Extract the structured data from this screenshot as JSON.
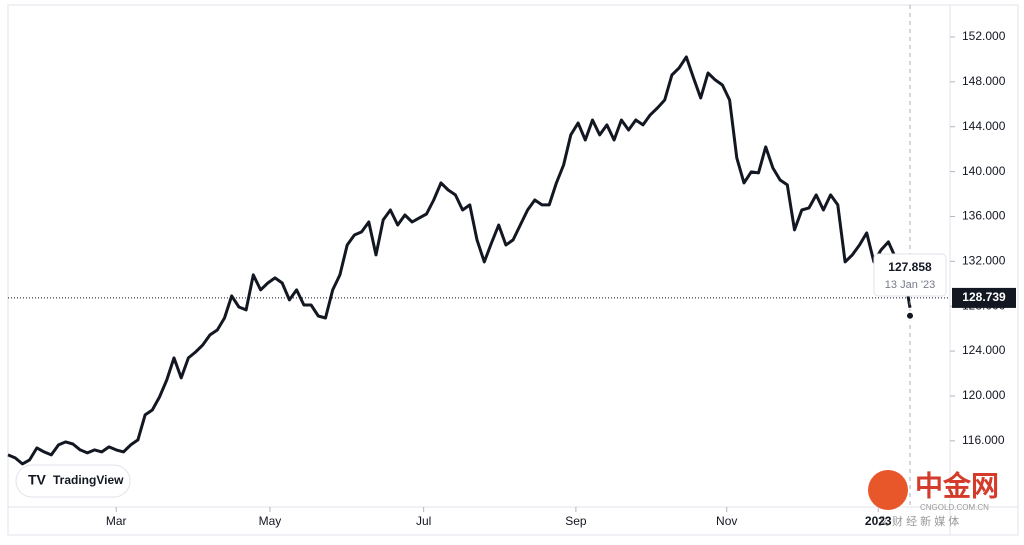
{
  "chart_data": {
    "type": "line",
    "values": [
      114.74,
      114.48,
      113.94,
      114.3,
      115.37,
      115.01,
      114.74,
      115.64,
      115.9,
      115.72,
      115.19,
      114.92,
      115.19,
      115.01,
      115.46,
      115.19,
      115.01,
      115.64,
      116.08,
      118.31,
      118.75,
      119.91,
      121.43,
      123.39,
      121.61,
      123.39,
      123.92,
      124.55,
      125.44,
      125.88,
      126.95,
      128.92,
      127.93,
      127.67,
      130.79,
      129.45,
      130.07,
      130.52,
      130.07,
      128.56,
      129.45,
      128.11,
      128.11,
      127.13,
      126.95,
      129.45,
      130.79,
      133.46,
      134.35,
      134.62,
      135.51,
      132.57,
      135.69,
      136.58,
      135.24,
      136.13,
      135.51,
      135.87,
      136.22,
      137.47,
      138.99,
      138.36,
      137.92,
      136.58,
      137.03,
      133.91,
      131.95,
      133.64,
      135.24,
      133.46,
      133.91,
      135.24,
      136.58,
      137.47,
      137.03,
      137.03,
      138.99,
      140.59,
      143.27,
      144.33,
      142.82,
      144.6,
      143.27,
      144.16,
      142.82,
      144.6,
      143.71,
      144.6,
      144.16,
      145.05,
      145.67,
      146.38,
      148.61,
      149.24,
      150.22,
      148.35,
      146.56,
      148.79,
      148.17,
      147.72,
      146.38,
      141.22,
      138.99,
      139.97,
      139.88,
      142.2,
      140.32,
      139.25,
      138.81,
      134.8,
      136.58,
      136.76,
      137.92,
      136.58,
      137.92,
      137.03,
      131.95,
      132.57,
      133.46,
      134.53,
      131.95,
      133.02,
      133.73,
      132.3,
      131.68,
      127.858
    ],
    "color": "#131722",
    "xlim": [
      0,
      125
    ],
    "xticks": [
      {
        "value": 15,
        "label": "Mar"
      },
      {
        "value": 36.3,
        "label": "May"
      },
      {
        "value": 57.6,
        "label": "Jul"
      },
      {
        "value": 78.7,
        "label": "Sep"
      },
      {
        "value": 99.6,
        "label": "Nov"
      },
      {
        "value": 120.6,
        "label": "2023"
      }
    ],
    "ylim": [
      110.1,
      154.85
    ],
    "yticks": [
      {
        "value": 116,
        "label": "116.000"
      },
      {
        "value": 120,
        "label": "120.000"
      },
      {
        "value": 124,
        "label": "124.000"
      },
      {
        "value": 128,
        "label": "128.000"
      },
      {
        "value": 132,
        "label": "132.000"
      },
      {
        "value": 136,
        "label": "136.000"
      },
      {
        "value": 140,
        "label": "140.000"
      },
      {
        "value": 144,
        "label": "144.000"
      },
      {
        "value": 148,
        "label": "148.000"
      },
      {
        "value": 152,
        "label": "152.000"
      }
    ],
    "price_line": {
      "value": 128.739,
      "label": "128.739"
    },
    "tooltip": {
      "value_label": "127.858",
      "date": "13 Jan '23"
    },
    "logo": "TradingView",
    "watermark": {
      "name": "中金网",
      "site": "CNGOLD.COM.CN",
      "tagline": "文 财 经 新 媒 体"
    }
  }
}
